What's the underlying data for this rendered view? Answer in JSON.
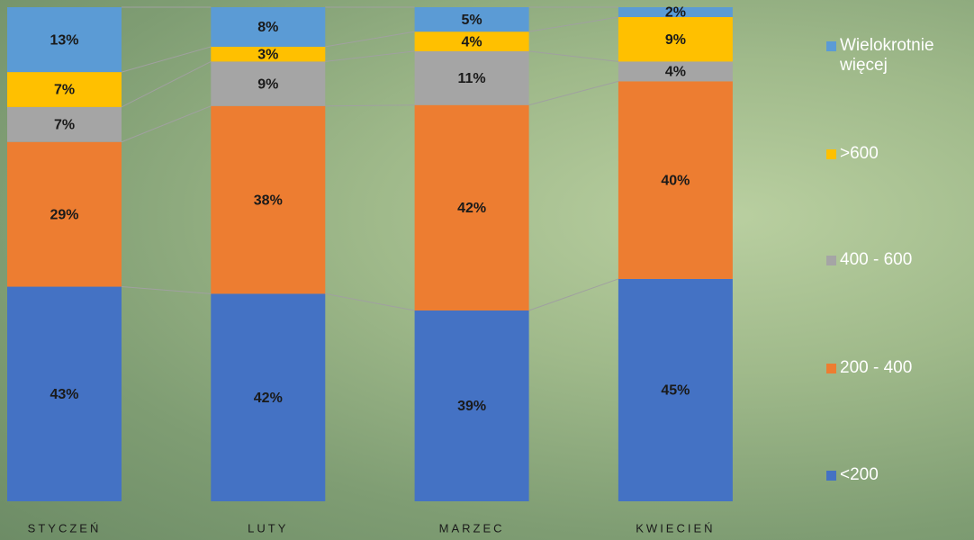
{
  "chart_data": {
    "type": "stacked_bar_100",
    "categories": [
      "STYCZEŃ",
      "LUTY",
      "MARZEC",
      "KWIECIEŃ"
    ],
    "series": [
      {
        "name": "<200",
        "color": "#4472c4",
        "values": [
          43,
          42,
          39,
          45
        ],
        "value_labels": [
          "43%",
          "42%",
          "39%",
          "45%"
        ]
      },
      {
        "name": "200 - 400",
        "color": "#ed7d31",
        "values": [
          29,
          38,
          42,
          40
        ],
        "value_labels": [
          "29%",
          "38%",
          "42%",
          "40%"
        ]
      },
      {
        "name": "400 - 600",
        "color": "#a5a5a5",
        "values": [
          7,
          9,
          11,
          4
        ],
        "value_labels": [
          "7%",
          "9%",
          "11%",
          "4%"
        ]
      },
      {
        "name": ">600",
        "color": "#ffc000",
        "values": [
          7,
          3,
          4,
          9
        ],
        "value_labels": [
          "7%",
          "3%",
          "4%",
          "9%"
        ]
      },
      {
        "name": "Wielokrotnie więcej",
        "color": "#5b9bd5",
        "values": [
          13,
          8,
          5,
          2
        ],
        "value_labels": [
          "13%",
          "8%",
          "5%",
          "2%"
        ]
      }
    ],
    "legend": "right"
  }
}
